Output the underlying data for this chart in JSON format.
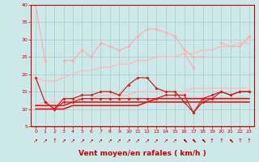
{
  "x": [
    0,
    1,
    2,
    3,
    4,
    5,
    6,
    7,
    8,
    9,
    10,
    11,
    12,
    13,
    14,
    15,
    16,
    17,
    18,
    19,
    20,
    21,
    22,
    23
  ],
  "series": [
    {
      "color": "#ffaaaa",
      "linewidth": 0.8,
      "markersize": 2.0,
      "marker": "D",
      "y": [
        40,
        24,
        null,
        null,
        null,
        null,
        null,
        null,
        null,
        null,
        null,
        null,
        null,
        null,
        null,
        null,
        null,
        null,
        null,
        null,
        null,
        null,
        null,
        null
      ]
    },
    {
      "color": "#ffaaaa",
      "linewidth": 0.8,
      "markersize": 2.0,
      "marker": "D",
      "y": [
        null,
        24,
        null,
        24,
        24,
        27,
        25,
        29,
        28,
        27,
        28,
        31,
        33,
        33,
        32,
        31,
        27,
        25,
        25,
        null,
        29,
        28,
        28,
        31
      ]
    },
    {
      "color": "#ffaaaa",
      "linewidth": 0.8,
      "markersize": 2.0,
      "marker": "D",
      "y": [
        null,
        null,
        null,
        null,
        null,
        null,
        null,
        null,
        null,
        null,
        null,
        null,
        null,
        null,
        null,
        null,
        26,
        22,
        null,
        null,
        null,
        null,
        null,
        null
      ]
    },
    {
      "color": "#ffbbbb",
      "linewidth": 1.0,
      "markersize": 0,
      "marker": null,
      "y": [
        19,
        18,
        18,
        19,
        20,
        21,
        21,
        22,
        22,
        23,
        23,
        24,
        24,
        25,
        25,
        25,
        26,
        26,
        27,
        27,
        28,
        28,
        29,
        29
      ]
    },
    {
      "color": "#ffbbbb",
      "linewidth": 1.0,
      "markersize": 0,
      "marker": null,
      "y": [
        11,
        12,
        12,
        12,
        13,
        13,
        13,
        14,
        14,
        14,
        14,
        15,
        15,
        15,
        15,
        15,
        15,
        16,
        16,
        16,
        16,
        16,
        16,
        16
      ]
    },
    {
      "color": "#cc2222",
      "linewidth": 0.9,
      "markersize": 2.0,
      "marker": "D",
      "y": [
        19,
        12,
        10,
        13,
        13,
        14,
        14,
        15,
        15,
        14,
        17,
        19,
        19,
        16,
        15,
        15,
        12,
        9,
        13,
        14,
        15,
        14,
        15,
        15
      ]
    },
    {
      "color": "#cc2222",
      "linewidth": 0.9,
      "markersize": 2.0,
      "marker": "D",
      "y": [
        null,
        12,
        10,
        12,
        12,
        13,
        13,
        13,
        13,
        13,
        13,
        13,
        13,
        13,
        14,
        14,
        14,
        9,
        12,
        13,
        15,
        14,
        15,
        15
      ]
    },
    {
      "color": "#ee1111",
      "linewidth": 1.2,
      "markersize": 0,
      "marker": null,
      "y": [
        11,
        11,
        11,
        11,
        12,
        12,
        12,
        12,
        12,
        12,
        12,
        12,
        12,
        13,
        13,
        13,
        13,
        13,
        13,
        13,
        13,
        13,
        13,
        13
      ]
    },
    {
      "color": "#ee1111",
      "linewidth": 1.2,
      "markersize": 0,
      "marker": null,
      "y": [
        10,
        10,
        10,
        10,
        11,
        11,
        11,
        11,
        11,
        11,
        11,
        11,
        12,
        12,
        12,
        12,
        12,
        12,
        12,
        12,
        12,
        12,
        12,
        12
      ]
    }
  ],
  "wind_arrows": [
    "↗",
    "↗",
    "↑",
    "↗",
    "↗",
    "↗",
    "↗",
    "↗",
    "↗",
    "↗",
    "↗",
    "↗",
    "↗",
    "↗",
    "↗",
    "↗",
    "⬉",
    "⬉",
    "⬉",
    "↑",
    "↑",
    "⬉",
    "↑",
    "↑"
  ],
  "xlabel": "Vent moyen/en rafales ( km/h )",
  "ylim": [
    5,
    40
  ],
  "xlim": [
    -0.5,
    23.5
  ],
  "yticks": [
    5,
    10,
    15,
    20,
    25,
    30,
    35,
    40
  ],
  "xticks": [
    0,
    1,
    2,
    3,
    4,
    5,
    6,
    7,
    8,
    9,
    10,
    11,
    12,
    13,
    14,
    15,
    16,
    17,
    18,
    19,
    20,
    21,
    22,
    23
  ],
  "bg_color": "#cce8e8",
  "grid_color": "#aacccc",
  "axis_color": "#cc0000",
  "tick_color": "#cc0000",
  "label_color": "#cc0000",
  "tick_fontsize": 4.5,
  "xlabel_fontsize": 6.5
}
